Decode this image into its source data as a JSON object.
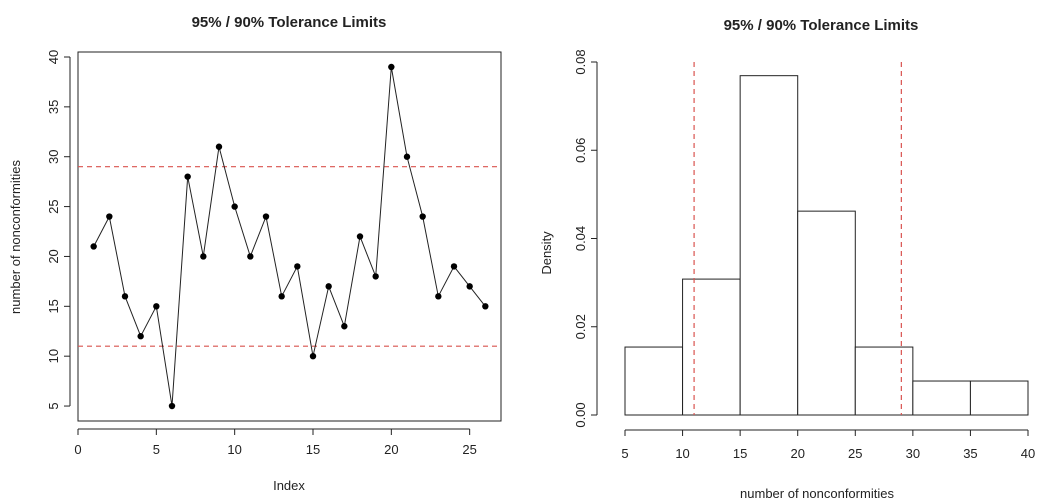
{
  "chart_data": [
    {
      "type": "line",
      "title": "95% / 90% Tolerance Limits",
      "xlabel": "Index",
      "ylabel": "number of nonconformities",
      "xlim": [
        0,
        27
      ],
      "ylim": [
        3.5,
        40.5
      ],
      "xticks": [
        "0",
        "5",
        "10",
        "15",
        "20",
        "25"
      ],
      "yticks": [
        "5",
        "10",
        "15",
        "20",
        "25",
        "30",
        "35",
        "40"
      ],
      "x": [
        1,
        2,
        3,
        4,
        5,
        6,
        7,
        8,
        9,
        10,
        11,
        12,
        13,
        14,
        15,
        16,
        17,
        18,
        19,
        20,
        21,
        22,
        23,
        24,
        25,
        26
      ],
      "series": [
        {
          "values": [
            21,
            24,
            16,
            12,
            15,
            5,
            28,
            20,
            31,
            25,
            20,
            24,
            16,
            19,
            10,
            17,
            13,
            22,
            18,
            39,
            30,
            24,
            16,
            19,
            17,
            15
          ]
        }
      ],
      "reference_lines": [
        11,
        29
      ],
      "reference_color": "#d9534f",
      "grid": false
    },
    {
      "type": "bar",
      "title": "95% / 90% Tolerance Limits",
      "xlabel": "number of nonconformities",
      "ylabel": "Density",
      "xlim": [
        5,
        40
      ],
      "ylim": [
        0,
        0.08
      ],
      "xticks": [
        "5",
        "10",
        "15",
        "20",
        "25",
        "30",
        "35",
        "40"
      ],
      "yticks": [
        "0.00",
        "0.02",
        "0.04",
        "0.06",
        "0.08"
      ],
      "bins": [
        [
          5,
          10
        ],
        [
          10,
          15
        ],
        [
          15,
          20
        ],
        [
          20,
          25
        ],
        [
          25,
          30
        ],
        [
          30,
          35
        ],
        [
          35,
          40
        ]
      ],
      "values": [
        0.0154,
        0.0308,
        0.0769,
        0.0462,
        0.0154,
        0.0077,
        0.0077
      ],
      "reference_lines": [
        11,
        29
      ],
      "reference_color": "#d9534f",
      "grid": false
    }
  ]
}
